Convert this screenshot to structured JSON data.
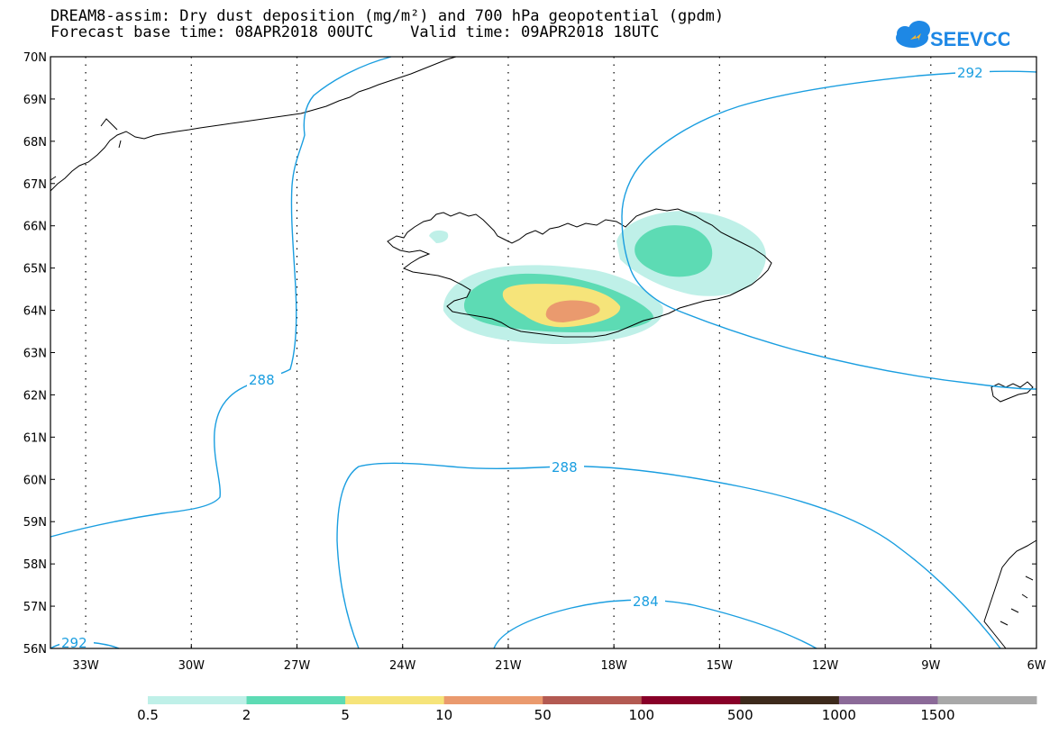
{
  "header": {
    "title": "DREAM8-assim: Dry dust deposition (mg/m²) and 700 hPa geopotential (gpdm)",
    "subtitle": "Forecast base time: 08APR2018 00UTC    Valid time: 09APR2018 18UTC"
  },
  "logo": {
    "text": "SEEVCCC",
    "icon": "cloud-logo-icon",
    "color": "#1e88e5"
  },
  "map": {
    "lat_labels": [
      "70N",
      "69N",
      "68N",
      "67N",
      "66N",
      "65N",
      "64N",
      "63N",
      "62N",
      "61N",
      "60N",
      "59N",
      "58N",
      "57N",
      "56N"
    ],
    "lon_labels": [
      "33W",
      "30W",
      "27W",
      "24W",
      "21W",
      "18W",
      "15W",
      "12W",
      "9W",
      "6W"
    ],
    "lat_range": [
      56,
      70
    ],
    "lon_range": [
      -34,
      -6
    ],
    "contour_color": "#1a9ee0",
    "contour_labels": [
      "292",
      "288",
      "288",
      "284",
      "292"
    ]
  },
  "colorbar": {
    "colors": [
      "#bff0e8",
      "#5ddbb4",
      "#f6e47a",
      "#ea9a6e",
      "#b35a52",
      "#880028",
      "#3d2a1c",
      "#8b6a98",
      "#a8a8a8"
    ],
    "labels": [
      "0.5",
      "2",
      "5",
      "10",
      "50",
      "100",
      "500",
      "1000",
      "1500"
    ]
  }
}
